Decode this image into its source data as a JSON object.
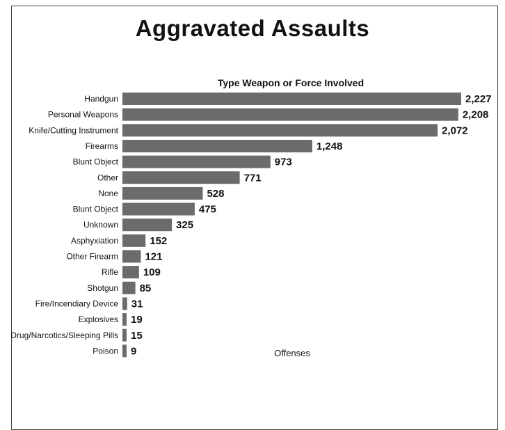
{
  "title": "Aggravated Assaults",
  "chart_data": {
    "type": "bar",
    "orientation": "horizontal",
    "title": "Type Weapon or Force Involved",
    "xlabel": "Offenses",
    "ylabel": "",
    "xlim": [
      0,
      2227
    ],
    "grid": false,
    "bar_color": "#6b6b6b",
    "categories": [
      "Handgun",
      "Personal Weapons",
      "Knife/Cutting Instrument",
      "Firearms",
      "Blunt Object",
      "Other",
      "None",
      "Blunt Object",
      "Unknown",
      "Asphyxiation",
      "Other Firearm",
      "Rifle",
      "Shotgun",
      "Fire/Incendiary Device",
      "Explosives",
      "Drug/Narcotics/Sleeping Pills",
      "Poison"
    ],
    "values": [
      2227,
      2208,
      2072,
      1248,
      973,
      771,
      528,
      475,
      325,
      152,
      121,
      109,
      85,
      31,
      19,
      15,
      9
    ],
    "value_labels": [
      "2,227",
      "2,208",
      "2,072",
      "1,248",
      "973",
      "771",
      "528",
      "475",
      "325",
      "152",
      "121",
      "109",
      "85",
      "31",
      "19",
      "15",
      "9"
    ]
  }
}
